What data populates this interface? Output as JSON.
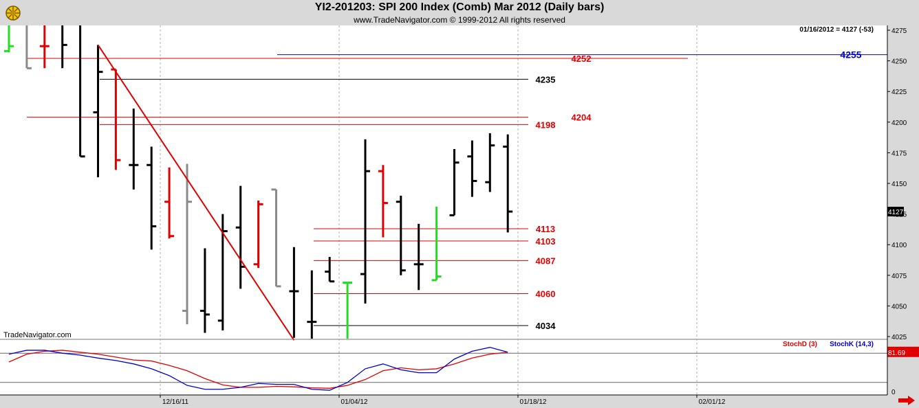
{
  "header": {
    "title": "YI2-201203:  SPI 200 Index (Comb) Mar 2012  (Daily bars)",
    "copyright": "www.TradeNavigator.com © 1999-2012 All rights reserved"
  },
  "watermark": "TradeNavigator.com",
  "info_readout": "01/16/2012 = 4127 (-53)",
  "colors": {
    "background": "#ffffff",
    "frame": "#d9d9d9",
    "bar_black": "#000000",
    "bar_red": "#e00000",
    "bar_gray": "#8a8a8a",
    "bar_green": "#22dd22",
    "level_red": "#e00000",
    "level_black": "#000000",
    "level_blue": "#0000cc",
    "trendline": "#e00000",
    "stoch_d": "#e00000",
    "stoch_k": "#0000cc"
  },
  "chart_data": [
    {
      "type": "ohlc",
      "title": "YI2-201203:  SPI 200 Index (Comb) Mar 2012  (Daily bars)",
      "ylim": [
        4020,
        4280
      ],
      "y_ticks": [
        4025,
        4050,
        4075,
        4100,
        4125,
        4150,
        4175,
        4200,
        4225,
        4250,
        4275
      ],
      "x_tick_labels": [
        "12/16/11",
        "01/04/12",
        "01/18/12",
        "02/01/12"
      ],
      "last_price_label": "4127",
      "bars": [
        {
          "open": 4258,
          "high": 4290,
          "low": 4257,
          "close": 4262,
          "color": "green"
        },
        {
          "open": 4282,
          "high": 4290,
          "low": 4244,
          "close": 4244,
          "color": "gray"
        },
        {
          "open": 4262,
          "high": 4282,
          "low": 4244,
          "close": 4262,
          "color": "red"
        },
        {
          "open": 4282,
          "high": 4290,
          "low": 4244,
          "close": 4263,
          "color": "black"
        },
        {
          "open": 4285,
          "high": 4290,
          "low": 4172,
          "close": 4172,
          "color": "black"
        },
        {
          "open": 4208,
          "high": 4263,
          "low": 4155,
          "close": 4241,
          "color": "black"
        },
        {
          "open": 4243,
          "high": 4243,
          "low": 4161,
          "close": 4169,
          "color": "red"
        },
        {
          "open": 4165,
          "high": 4211,
          "low": 4145,
          "close": 4165,
          "color": "black"
        },
        {
          "open": 4165,
          "high": 4180,
          "low": 4096,
          "close": 4115,
          "color": "black"
        },
        {
          "open": 4135,
          "high": 4163,
          "low": 4105,
          "close": 4107,
          "color": "red"
        },
        {
          "open": 4046,
          "high": 4166,
          "low": 4035,
          "close": 4135,
          "color": "gray"
        },
        {
          "open": 4046,
          "high": 4097,
          "low": 4028,
          "close": 4043,
          "color": "black"
        },
        {
          "open": 4038,
          "high": 4125,
          "low": 4030,
          "close": 4111,
          "color": "black"
        },
        {
          "open": 4114,
          "high": 4148,
          "low": 4064,
          "close": 4082,
          "color": "black"
        },
        {
          "open": 4084,
          "high": 4136,
          "low": 4081,
          "close": 4133,
          "color": "red"
        },
        {
          "open": 4145,
          "high": 4145,
          "low": 4066,
          "close": 4066,
          "color": "gray"
        },
        {
          "open": 4062,
          "high": 4098,
          "low": 4024,
          "close": 4062,
          "color": "black"
        },
        {
          "open": 4037,
          "high": 4079,
          "low": 4022,
          "close": 4037,
          "color": "black"
        },
        {
          "open": 4078,
          "high": 4090,
          "low": 4070,
          "close": 4070,
          "color": "black"
        },
        {
          "open": 4069,
          "high": 4069,
          "low": 4023,
          "close": 4069,
          "color": "green"
        },
        {
          "open": 4076,
          "high": 4186,
          "low": 4052,
          "close": 4160,
          "color": "black"
        },
        {
          "open": 4160,
          "high": 4165,
          "low": 4106,
          "close": 4134,
          "color": "red"
        },
        {
          "open": 4135,
          "high": 4140,
          "low": 4075,
          "close": 4079,
          "color": "black"
        },
        {
          "open": 4084,
          "high": 4117,
          "low": 4063,
          "close": 4084,
          "color": "black"
        },
        {
          "open": 4071,
          "high": 4131,
          "low": 4071,
          "close": 4074,
          "color": "green"
        },
        {
          "open": 4124,
          "high": 4178,
          "low": 4124,
          "close": 4167,
          "color": "black"
        },
        {
          "open": 4172,
          "high": 4185,
          "low": 4139,
          "close": 4152,
          "color": "black"
        },
        {
          "open": 4151,
          "high": 4191,
          "low": 4143,
          "close": 4181,
          "color": "black"
        },
        {
          "open": 4180,
          "high": 4190,
          "low": 4110,
          "close": 4127,
          "color": "black"
        }
      ],
      "levels": [
        {
          "value": 4255,
          "label": "4255",
          "color": "blue"
        },
        {
          "value": 4252,
          "label": "4252",
          "color": "red"
        },
        {
          "value": 4235,
          "label": "4235",
          "color": "black"
        },
        {
          "value": 4204,
          "label": "4204",
          "color": "red"
        },
        {
          "value": 4198,
          "label": "4198",
          "color": "red"
        },
        {
          "value": 4113,
          "label": "4113",
          "color": "red"
        },
        {
          "value": 4103,
          "label": "4103",
          "color": "red"
        },
        {
          "value": 4087,
          "label": "4087",
          "color": "red"
        },
        {
          "value": 4060,
          "label": "4060",
          "color": "red"
        },
        {
          "value": 4034,
          "label": "4034",
          "color": "black"
        }
      ],
      "trendline": {
        "from": {
          "bar": 5,
          "value": 4263
        },
        "to": {
          "bar": 16,
          "value": 4022
        }
      }
    },
    {
      "type": "line",
      "title": "Stochastic",
      "ylim": [
        0,
        100
      ],
      "y_ticks": [
        0
      ],
      "reference_levels": [
        80,
        20
      ],
      "last_value_label": "81.69",
      "series": [
        {
          "name": "StochD (3)",
          "color": "red",
          "values": [
            62,
            78,
            84,
            86,
            82,
            78,
            72,
            66,
            64,
            55,
            44,
            28,
            15,
            10,
            10,
            12,
            11,
            9,
            8,
            14,
            26,
            44,
            50,
            46,
            48,
            58,
            70,
            78,
            82
          ]
        },
        {
          "name": "StochK (14,3)",
          "color": "blue",
          "values": [
            78,
            86,
            86,
            80,
            76,
            70,
            65,
            58,
            48,
            34,
            14,
            6,
            6,
            10,
            18,
            16,
            16,
            6,
            4,
            20,
            48,
            58,
            46,
            40,
            40,
            68,
            84,
            92,
            82
          ]
        }
      ]
    }
  ]
}
